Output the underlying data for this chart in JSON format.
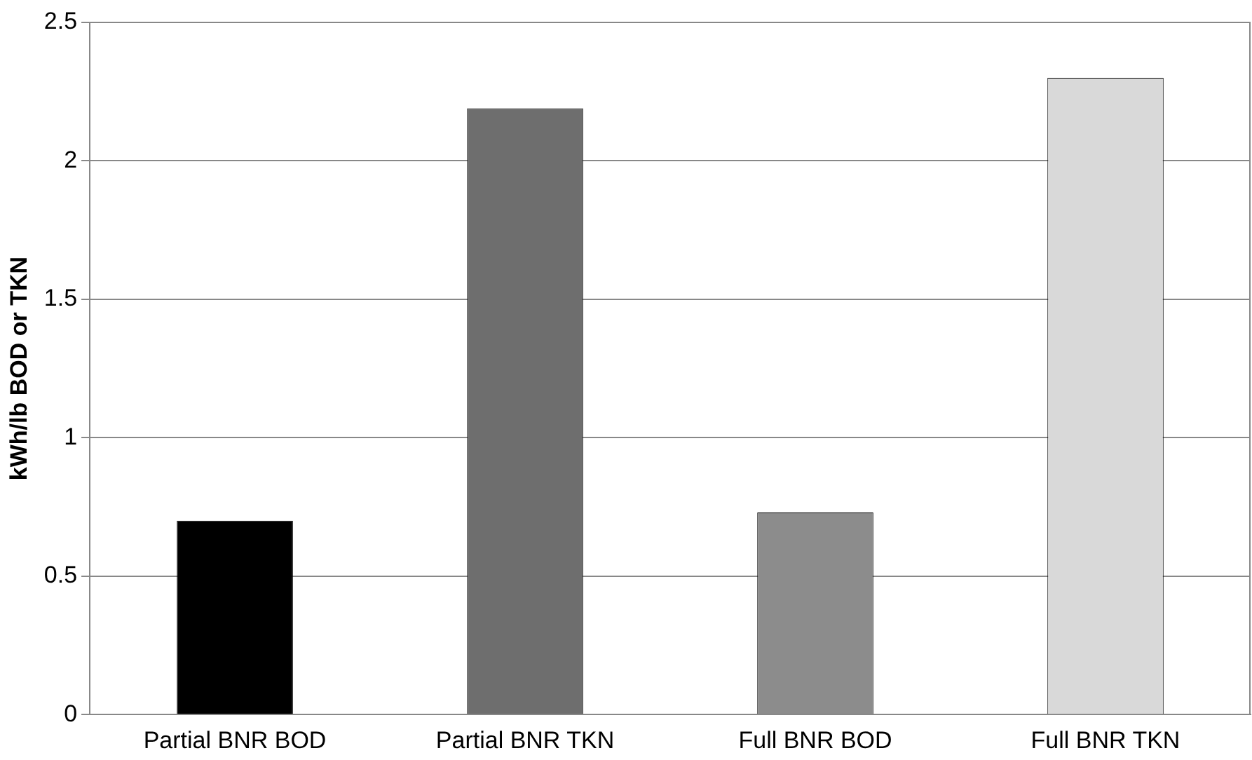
{
  "chart_data": {
    "type": "bar",
    "ylabel": "kWh/lb BOD or TKN",
    "categories": [
      "Partial BNR BOD",
      "Partial BNR TKN",
      "Full BNR BOD",
      "Full BNR TKN"
    ],
    "values": [
      0.7,
      2.19,
      0.73,
      2.3
    ],
    "colors": [
      "#000000",
      "#6e6e6e",
      "#8c8c8c",
      "#d9d9d9"
    ],
    "ylim": [
      0,
      2.5
    ],
    "yticks": [
      0,
      0.5,
      1,
      1.5,
      2,
      2.5
    ],
    "grid": "y",
    "legend": false
  }
}
